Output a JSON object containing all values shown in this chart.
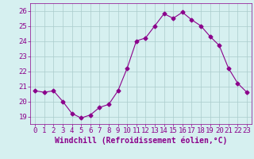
{
  "x": [
    0,
    1,
    2,
    3,
    4,
    5,
    6,
    7,
    8,
    9,
    10,
    11,
    12,
    13,
    14,
    15,
    16,
    17,
    18,
    19,
    20,
    21,
    22,
    23
  ],
  "y": [
    20.7,
    20.6,
    20.7,
    20.0,
    19.2,
    18.9,
    19.1,
    19.6,
    19.8,
    20.7,
    22.2,
    24.0,
    24.2,
    25.0,
    25.8,
    25.5,
    25.9,
    25.4,
    25.0,
    24.3,
    23.7,
    22.2,
    21.2,
    20.6
  ],
  "line_color": "#8B008B",
  "marker": "D",
  "marker_size": 2.5,
  "bg_color": "#d6f0f0",
  "grid_color": "#aacccc",
  "xlabel": "Windchill (Refroidissement éolien,°C)",
  "ylabel_ticks": [
    19,
    20,
    21,
    22,
    23,
    24,
    25,
    26
  ],
  "ylim": [
    18.5,
    26.5
  ],
  "xlim": [
    -0.5,
    23.5
  ],
  "xlabel_fontsize": 7,
  "tick_fontsize": 6.5,
  "title": ""
}
